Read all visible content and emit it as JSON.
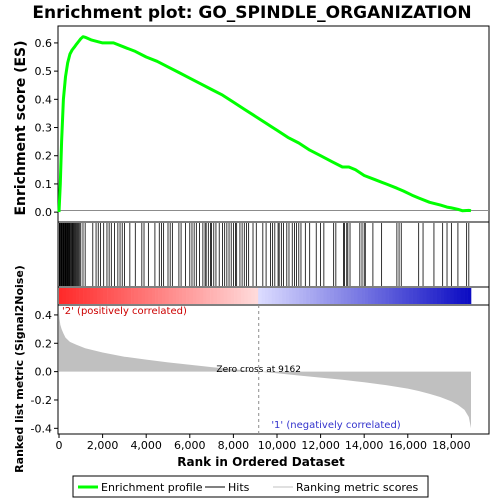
{
  "chart_data": {
    "type": "line",
    "title": "Enrichment plot: GO_SPINDLE_ORGANIZATION",
    "x_label": "Rank in Ordered Dataset",
    "x_range": [
      0,
      19500
    ],
    "x_ticks": [
      0,
      2000,
      4000,
      6000,
      8000,
      10000,
      12000,
      14000,
      16000,
      18000
    ],
    "x_tick_labels": [
      "0",
      "2,000",
      "4,000",
      "6,000",
      "8,000",
      "10,000",
      "12,000",
      "14,000",
      "16,000",
      "18,000"
    ],
    "n_ranks": 18900,
    "zero_cross": 9162,
    "top_panel": {
      "y_label": "Enrichment score (ES)",
      "y_range": [
        -0.035,
        0.66
      ],
      "y_ticks": [
        0.0,
        0.1,
        0.2,
        0.3,
        0.4,
        0.5,
        0.6
      ],
      "y_tick_labels": [
        "0.0",
        "0.1",
        "0.2",
        "0.3",
        "0.4",
        "0.5",
        "0.6"
      ],
      "series": [
        {
          "name": "Enrichment profile",
          "color": "#00ff00",
          "x": [
            0,
            60,
            120,
            200,
            300,
            400,
            500,
            600,
            700,
            800,
            900,
            1000,
            1100,
            1200,
            1500,
            2000,
            2500,
            3000,
            3500,
            4000,
            4500,
            5000,
            5500,
            6000,
            6500,
            7000,
            7500,
            8000,
            8500,
            9000,
            9500,
            10000,
            10500,
            11000,
            11500,
            12000,
            12500,
            13000,
            13300,
            13600,
            14000,
            14500,
            15000,
            15500,
            15800,
            16200,
            16500,
            17000,
            17500,
            17800,
            18000,
            18300,
            18500,
            18800,
            18900
          ],
          "y": [
            0.0,
            0.1,
            0.25,
            0.4,
            0.48,
            0.53,
            0.56,
            0.575,
            0.585,
            0.595,
            0.605,
            0.615,
            0.622,
            0.62,
            0.61,
            0.6,
            0.6,
            0.585,
            0.57,
            0.55,
            0.535,
            0.515,
            0.495,
            0.475,
            0.455,
            0.435,
            0.415,
            0.39,
            0.365,
            0.34,
            0.315,
            0.29,
            0.265,
            0.245,
            0.22,
            0.2,
            0.18,
            0.16,
            0.16,
            0.15,
            0.13,
            0.115,
            0.1,
            0.085,
            0.075,
            0.06,
            0.05,
            0.035,
            0.025,
            0.018,
            0.015,
            0.01,
            0.005,
            0.006,
            0.005
          ]
        }
      ]
    },
    "hits": [
      15,
      40,
      70,
      100,
      130,
      160,
      190,
      220,
      250,
      280,
      310,
      340,
      370,
      400,
      430,
      460,
      490,
      520,
      560,
      600,
      640,
      680,
      720,
      760,
      800,
      850,
      900,
      950,
      1000,
      1100,
      1200,
      1550,
      1700,
      1800,
      1900,
      2050,
      2200,
      2300,
      2400,
      2550,
      2700,
      2800,
      2900,
      3000,
      3250,
      3500,
      3800,
      3900,
      4100,
      4400,
      4600,
      4700,
      4800,
      5000,
      5100,
      5200,
      5500,
      5600,
      5800,
      6000,
      6100,
      6200,
      6300,
      6450,
      6600,
      6700,
      6750,
      6850,
      6950,
      7000,
      7100,
      7200,
      7350,
      7500,
      7600,
      7700,
      7800,
      7900,
      8000,
      8100,
      8150,
      8300,
      8400,
      8500,
      8600,
      8700,
      8900,
      9050,
      9350,
      9500,
      9700,
      9800,
      9900,
      10050,
      10100,
      10200,
      10300,
      10450,
      10550,
      10700,
      10800,
      10900,
      11000,
      11100,
      11300,
      11500,
      11800,
      12000,
      12150,
      12600,
      12700,
      13050,
      13100,
      13200,
      13250,
      13350,
      13800,
      13900,
      14000,
      14050,
      14400,
      14800,
      15500,
      15600,
      15700,
      16500,
      16700,
      17200,
      17600,
      17800,
      18000,
      18300,
      18700,
      18800
    ],
    "bottom_panel": {
      "y_label": "Ranked list metric (Signal2Noise)",
      "y_range": [
        -0.44,
        0.47
      ],
      "y_ticks": [
        -0.4,
        -0.2,
        0.0,
        0.2,
        0.4
      ],
      "y_tick_labels": [
        "-0.4",
        "-0.2",
        "0.0",
        "0.2",
        "0.4"
      ],
      "fill_color": "#c0c0c0",
      "metric_x": [
        0,
        20,
        60,
        120,
        200,
        300,
        500,
        800,
        1200,
        2000,
        3000,
        4000,
        5000,
        6000,
        7000,
        8000,
        9162,
        10000,
        11000,
        12000,
        13000,
        14000,
        15000,
        16000,
        16500,
        17000,
        17500,
        18000,
        18300,
        18600,
        18800,
        18900
      ],
      "metric_y": [
        0.43,
        0.38,
        0.33,
        0.3,
        0.27,
        0.24,
        0.21,
        0.19,
        0.165,
        0.135,
        0.105,
        0.085,
        0.065,
        0.048,
        0.032,
        0.017,
        0.0,
        -0.012,
        -0.027,
        -0.042,
        -0.058,
        -0.075,
        -0.095,
        -0.12,
        -0.137,
        -0.157,
        -0.18,
        -0.21,
        -0.235,
        -0.27,
        -0.32,
        -0.4
      ]
    },
    "annotations": {
      "positive": "'2' (positively correlated)",
      "negative": "'1' (negatively correlated)",
      "zero_cross": "Zero cross at 9162"
    },
    "legend": {
      "placement": "bottom",
      "entries": [
        {
          "label": "Enrichment profile",
          "color": "#00ff00",
          "style": "thick-line"
        },
        {
          "label": "Hits",
          "color": "#000000",
          "style": "line"
        },
        {
          "label": "Ranking metric scores",
          "color": "#c0c0c0",
          "style": "line"
        }
      ]
    }
  }
}
